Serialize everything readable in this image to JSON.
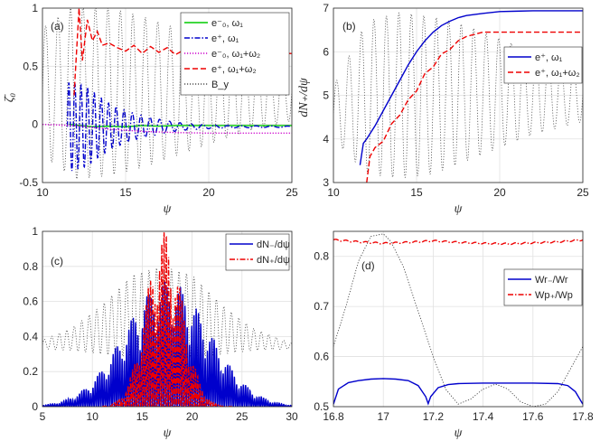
{
  "chart_data": [
    {
      "panel": "(a)",
      "type": "line",
      "xlabel": "ψ",
      "ylabel": "ζ̄₀",
      "xlim": [
        10,
        25
      ],
      "ylim": [
        -0.5,
        1
      ],
      "xticks": [
        "10",
        "15",
        "20",
        "25"
      ],
      "yticks": [
        "-0.5",
        "0",
        "0.5",
        "1"
      ],
      "grid": true,
      "legend": "top-right",
      "series": [
        {
          "name": "e⁻₀, ω₁",
          "color": "#00cc00",
          "dash": "solid",
          "x": [
            11.6,
            13,
            14,
            15,
            16,
            17,
            18,
            19,
            20,
            21,
            22,
            23,
            24,
            25
          ],
          "y": [
            0.0,
            -0.02,
            -0.015,
            -0.02,
            -0.01,
            -0.015,
            -0.01,
            -0.01,
            -0.01,
            -0.01,
            -0.01,
            -0.01,
            -0.01,
            -0.01
          ]
        },
        {
          "name": "e⁺, ω₁",
          "color": "#0000cc",
          "dash": "dashdot",
          "envelope_x": [
            11.5,
            11.8,
            12.2,
            12.7,
            13.3,
            14,
            14.8,
            15.6,
            16.5,
            17.5,
            18.5,
            19.5,
            21,
            25
          ],
          "envelope_amp": [
            0.38,
            0.38,
            0.36,
            0.34,
            0.27,
            0.2,
            0.15,
            0.11,
            0.08,
            0.05,
            0.03,
            0.02,
            0.01,
            0.005
          ],
          "offset": -0.02
        },
        {
          "name": "e⁻₀, ω₁+ω₂",
          "color": "#cc00cc",
          "dash": "dotted",
          "x": [
            10,
            12,
            14,
            16,
            18,
            20,
            22,
            25
          ],
          "y": [
            0.0,
            -0.01,
            -0.04,
            -0.06,
            -0.07,
            -0.075,
            -0.075,
            -0.075
          ]
        },
        {
          "name": "e⁺, ω₁+ω₂",
          "color": "#ee0000",
          "dash": "dashed",
          "x": [
            11.9,
            12.2,
            12.4,
            12.7,
            13.0,
            13.3,
            13.6,
            14.0,
            14.5,
            15.0,
            15.5,
            16.0,
            16.5,
            17.0,
            17.5,
            18.0,
            18.5,
            19.0,
            19.5,
            20.0,
            21.0,
            22.0,
            23.0,
            24.0,
            25.0
          ],
          "y": [
            0.25,
            1.0,
            0.55,
            0.9,
            0.72,
            0.8,
            0.68,
            0.7,
            0.66,
            0.63,
            0.68,
            0.61,
            0.67,
            0.62,
            0.66,
            0.6,
            0.64,
            0.6,
            0.63,
            0.6,
            0.61,
            0.6,
            0.6,
            0.61,
            0.61
          ]
        },
        {
          "name": "B_y",
          "color": "#555555",
          "dash": "dotted",
          "oscillation": {
            "x_start": 10,
            "x_end": 25,
            "period": 0.75,
            "center": 0.28,
            "envelope_x": [
              10,
              12,
              14,
              16,
              18,
              20,
              22,
              25
            ],
            "envelope_amp": [
              0.55,
              0.75,
              0.72,
              0.65,
              0.55,
              0.45,
              0.35,
              0.25
            ]
          }
        }
      ]
    },
    {
      "panel": "(b)",
      "type": "line",
      "xlabel": "ψ",
      "ylabel": "dN₊/dψ",
      "xlim": [
        10,
        25
      ],
      "ylim": [
        3,
        7
      ],
      "xticks": [
        "10",
        "15",
        "20",
        "25"
      ],
      "yticks": [
        "3",
        "4",
        "5",
        "6",
        "7"
      ],
      "grid": true,
      "legend": "top-right",
      "series": [
        {
          "name": "e⁺, ω₁",
          "color": "#0000cc",
          "dash": "solid",
          "x": [
            11.6,
            11.8,
            12.0,
            12.5,
            13.0,
            13.5,
            14.0,
            14.5,
            15.0,
            15.5,
            16.0,
            16.5,
            17.0,
            17.5,
            18.0,
            19.0,
            20.0,
            21.0,
            22.0,
            25.0
          ],
          "y": [
            3.4,
            3.9,
            4.0,
            4.3,
            4.65,
            5.0,
            5.35,
            5.7,
            6.0,
            6.25,
            6.45,
            6.6,
            6.7,
            6.78,
            6.83,
            6.88,
            6.92,
            6.93,
            6.94,
            6.94
          ]
        },
        {
          "name": "e⁺, ω₁+ω₂",
          "color": "#ee0000",
          "dash": "dashed",
          "x": [
            12.0,
            12.2,
            12.5,
            13.0,
            13.5,
            14.0,
            14.5,
            15.0,
            15.5,
            16.0,
            16.5,
            17.0,
            17.5,
            18.0,
            19.0,
            20.0,
            21.0,
            22.0,
            25.0
          ],
          "y": [
            3.0,
            3.6,
            3.8,
            3.95,
            4.35,
            4.55,
            4.9,
            5.1,
            5.5,
            5.65,
            5.95,
            6.05,
            6.25,
            6.35,
            6.45,
            6.45,
            6.45,
            6.45,
            6.45
          ]
        },
        {
          "name": "",
          "color": "#555555",
          "dash": "dotted",
          "oscillation": {
            "x_start": 10,
            "x_end": 25,
            "period": 0.75,
            "upper_x": [
              10,
              12,
              14,
              16,
              18,
              20,
              22,
              25
            ],
            "upper_y": [
              5.2,
              6.7,
              6.9,
              6.8,
              6.6,
              6.3,
              6.0,
              5.6
            ],
            "lower_x": [
              10,
              12,
              14,
              16,
              18,
              20,
              22,
              25
            ],
            "lower_y": [
              4.0,
              3.2,
              3.1,
              3.2,
              3.5,
              3.8,
              4.1,
              4.4
            ]
          }
        }
      ]
    },
    {
      "panel": "(c)",
      "type": "line",
      "xlabel": "ψ",
      "ylabel": "",
      "xlim": [
        5,
        30
      ],
      "ylim": [
        0,
        1
      ],
      "xticks": [
        "5",
        "10",
        "15",
        "20",
        "25",
        "30"
      ],
      "yticks": [
        "0",
        "0.2",
        "0.4",
        "0.6",
        "0.8",
        "1"
      ],
      "grid": true,
      "legend": "top-right",
      "series": [
        {
          "name": "dN₋/dψ",
          "color": "#0000cc",
          "dash": "solid",
          "oscillation": {
            "x_start": 5,
            "x_end": 30,
            "period": 0.45,
            "center": 17.5,
            "sigma": 4.2,
            "peak": 0.72
          }
        },
        {
          "name": "dN₊/dψ",
          "color": "#ee0000",
          "dash": "dashdot",
          "oscillation": {
            "x_start": 11,
            "x_end": 24,
            "period": 0.45,
            "center": 17.2,
            "sigma": 1.8,
            "peak": 1.0
          }
        },
        {
          "name": "",
          "color": "#555555",
          "dash": "dotted",
          "oscillation": {
            "x_start": 5,
            "x_end": 30,
            "period": 0.75,
            "upper_x": [
              5,
              8,
              11,
              14,
              17,
              20,
              23,
              26,
              30
            ],
            "upper_y": [
              0.38,
              0.45,
              0.58,
              0.75,
              0.8,
              0.75,
              0.58,
              0.45,
              0.36
            ],
            "lower_x": [
              5,
              8,
              11,
              14,
              17,
              20,
              23,
              26,
              30
            ],
            "lower_y": [
              0.33,
              0.32,
              0.3,
              0.28,
              0.28,
              0.28,
              0.3,
              0.32,
              0.33
            ]
          }
        }
      ]
    },
    {
      "panel": "(d)",
      "type": "line",
      "xlabel": "ψ",
      "ylabel": "",
      "xlim": [
        16.8,
        17.8
      ],
      "ylim": [
        0.5,
        0.85
      ],
      "xticks": [
        "16.8",
        "17",
        "17.2",
        "17.4",
        "17.6",
        "17.8"
      ],
      "yticks": [
        "0.5",
        "0.6",
        "0.7",
        "0.8"
      ],
      "grid": true,
      "legend": "center-right",
      "series": [
        {
          "name": "Wr₋/Wr",
          "color": "#0000cc",
          "dash": "solid",
          "x": [
            16.8,
            16.82,
            16.86,
            16.9,
            16.95,
            17.0,
            17.05,
            17.1,
            17.14,
            17.17,
            17.18,
            17.19,
            17.22,
            17.26,
            17.3,
            17.4,
            17.5,
            17.6,
            17.7,
            17.74,
            17.77,
            17.8
          ],
          "y": [
            0.505,
            0.535,
            0.548,
            0.552,
            0.555,
            0.556,
            0.555,
            0.552,
            0.542,
            0.52,
            0.506,
            0.52,
            0.538,
            0.544,
            0.546,
            0.547,
            0.547,
            0.547,
            0.546,
            0.542,
            0.53,
            0.505
          ]
        },
        {
          "name": "Wp₊/Wp",
          "color": "#ee0000",
          "dash": "dashdot",
          "oscillation": {
            "x_start": 16.8,
            "x_end": 17.8,
            "period": 0.04,
            "center": 0.829,
            "amp": 0.0015,
            "trend_x": [
              16.8,
              16.9,
              17.0,
              17.1,
              17.2,
              17.3,
              17.4,
              17.5,
              17.6,
              17.7,
              17.8
            ],
            "trend_y": [
              0.833,
              0.829,
              0.826,
              0.828,
              0.831,
              0.828,
              0.826,
              0.825,
              0.827,
              0.829,
              0.833
            ]
          }
        },
        {
          "name": "",
          "color": "#333333",
          "dash": "dotted",
          "x": [
            16.8,
            16.85,
            16.9,
            16.95,
            17.0,
            17.03,
            17.08,
            17.12,
            17.16,
            17.2,
            17.25,
            17.3,
            17.35,
            17.4,
            17.45,
            17.5,
            17.55,
            17.6,
            17.65,
            17.7,
            17.75,
            17.8
          ],
          "y": [
            0.62,
            0.7,
            0.79,
            0.84,
            0.845,
            0.83,
            0.78,
            0.72,
            0.66,
            0.6,
            0.535,
            0.505,
            0.515,
            0.535,
            0.545,
            0.535,
            0.51,
            0.5,
            0.505,
            0.53,
            0.575,
            0.62
          ]
        }
      ]
    }
  ]
}
